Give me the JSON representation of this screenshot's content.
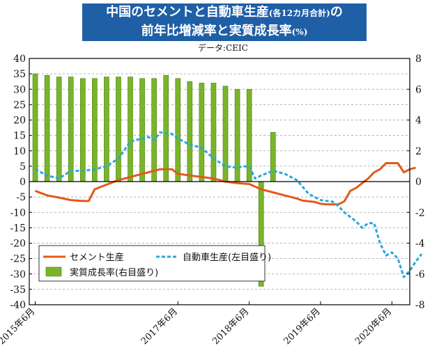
{
  "header": {
    "title_line1_main": "中国のセメントと自動車生産",
    "title_line1_small": "(各12カ月合計)",
    "title_line1_end": "の",
    "title_line2_main": "前年比増減率と実質成長率",
    "title_line2_small": "(%)",
    "source": "データ:CEIC"
  },
  "chart_data": {
    "type": "line",
    "title": "中国のセメントと自動車生産(各12カ月合計)の前年比増減率と実質成長率(%)",
    "x_axis": {
      "range": [
        "2015-05",
        "2020-09"
      ],
      "tick_labels": [
        "2015年6月",
        "2017年6月",
        "2018年6月",
        "2019年6月",
        "2020年6月"
      ],
      "tick_dates": [
        "2015-06",
        "2017-06",
        "2018-06",
        "2019-06",
        "2020-06"
      ]
    },
    "y_left": {
      "range": [
        -40,
        40
      ],
      "step": 5,
      "tick_labels": [
        "40",
        "35",
        "30",
        "25",
        "20",
        "15",
        "10",
        "5",
        "0",
        "-5",
        "-10",
        "-15",
        "-20",
        "-25",
        "-30",
        "-35",
        "-40"
      ]
    },
    "y_right": {
      "range": [
        -8,
        8
      ],
      "step": 2,
      "tick_labels": [
        "8",
        "6",
        "4",
        "2",
        "0",
        "-2",
        "-4",
        "-6",
        "-8"
      ]
    },
    "grid": "horizontal dashed",
    "legend": "bottom-left",
    "series": [
      {
        "name": "セメント生産",
        "axis": "left",
        "style": "solid",
        "color": "#e2591b",
        "points": [
          [
            "2015-06",
            -3
          ],
          [
            "2015-08",
            -4.5
          ],
          [
            "2015-10",
            -5.2
          ],
          [
            "2015-12",
            -6
          ],
          [
            "2016-02",
            -6.3
          ],
          [
            "2016-03",
            -6.3
          ],
          [
            "2016-04",
            -2.5
          ],
          [
            "2016-06",
            -1
          ],
          [
            "2016-08",
            0.5
          ],
          [
            "2016-10",
            1.5
          ],
          [
            "2016-12",
            2.5
          ],
          [
            "2017-02",
            3.5
          ],
          [
            "2017-03",
            4
          ],
          [
            "2017-05",
            4
          ],
          [
            "2017-06",
            2.5
          ],
          [
            "2017-08",
            2
          ],
          [
            "2017-10",
            1.5
          ],
          [
            "2017-12",
            1
          ],
          [
            "2018-02",
            0
          ],
          [
            "2018-04",
            -0.5
          ],
          [
            "2018-06",
            -0.8
          ],
          [
            "2018-08",
            -2.5
          ],
          [
            "2018-10",
            -3.5
          ],
          [
            "2018-12",
            -4.5
          ],
          [
            "2019-02",
            -5.5
          ],
          [
            "2019-03",
            -6.2
          ],
          [
            "2019-05",
            -6.6
          ],
          [
            "2019-06",
            -7.2
          ],
          [
            "2019-07",
            -7.4
          ],
          [
            "2019-08",
            -7.4
          ],
          [
            "2019-09",
            -7.4
          ],
          [
            "2019-10",
            -6.4
          ],
          [
            "2019-11",
            -3
          ],
          [
            "2019-12",
            -2
          ],
          [
            "2020-02",
            1
          ],
          [
            "2020-03",
            3
          ],
          [
            "2020-04",
            4
          ],
          [
            "2020-05",
            6
          ],
          [
            "2020-06",
            6
          ],
          [
            "2020-07",
            6
          ],
          [
            "2020-08",
            3
          ],
          [
            "2020-09",
            4
          ],
          [
            "2020-10",
            4.5
          ]
        ]
      },
      {
        "name": "自動車生産(左目盛り)",
        "axis": "left",
        "style": "dashed",
        "color": "#29a8dc",
        "points": [
          [
            "2015-06",
            4
          ],
          [
            "2015-08",
            2
          ],
          [
            "2015-10",
            1
          ],
          [
            "2015-12",
            3.5
          ],
          [
            "2016-02",
            3.5
          ],
          [
            "2016-04",
            4
          ],
          [
            "2016-06",
            5
          ],
          [
            "2016-08",
            7.5
          ],
          [
            "2016-10",
            13
          ],
          [
            "2016-12",
            14
          ],
          [
            "2017-01",
            14.5
          ],
          [
            "2017-02",
            13.5
          ],
          [
            "2017-03",
            16
          ],
          [
            "2017-05",
            15.5
          ],
          [
            "2017-06",
            14
          ],
          [
            "2017-08",
            12
          ],
          [
            "2017-10",
            11
          ],
          [
            "2017-12",
            7.5
          ],
          [
            "2018-02",
            5
          ],
          [
            "2018-04",
            4.5
          ],
          [
            "2018-05",
            5
          ],
          [
            "2018-06",
            4.8
          ],
          [
            "2018-07",
            1
          ],
          [
            "2018-08",
            2
          ],
          [
            "2018-10",
            3.5
          ],
          [
            "2018-12",
            2.5
          ],
          [
            "2019-02",
            0.5
          ],
          [
            "2019-04",
            -4
          ],
          [
            "2019-06",
            -6
          ],
          [
            "2019-08",
            -6.5
          ],
          [
            "2019-09",
            -8
          ],
          [
            "2019-10",
            -10
          ],
          [
            "2019-12",
            -13
          ],
          [
            "2020-01",
            -15
          ],
          [
            "2020-02",
            -13.5
          ],
          [
            "2020-03",
            -13.5
          ],
          [
            "2020-04",
            -20
          ],
          [
            "2020-05",
            -24
          ],
          [
            "2020-06",
            -23
          ],
          [
            "2020-07",
            -25
          ],
          [
            "2020-08",
            -31
          ],
          [
            "2020-09",
            -29
          ],
          [
            "2020-10",
            -26
          ],
          [
            "2020-11",
            -23.5
          ]
        ]
      },
      {
        "name": "実質成長率(右目盛り)",
        "axis": "right",
        "style": "bar",
        "color": "#7ab529",
        "points": [
          [
            "2015-06",
            7.0
          ],
          [
            "2015-08",
            6.9
          ],
          [
            "2015-10",
            6.8
          ],
          [
            "2015-12",
            6.8
          ],
          [
            "2016-02",
            6.7
          ],
          [
            "2016-04",
            6.7
          ],
          [
            "2016-06",
            6.8
          ],
          [
            "2016-08",
            6.8
          ],
          [
            "2016-10",
            6.8
          ],
          [
            "2016-12",
            6.7
          ],
          [
            "2017-02",
            6.7
          ],
          [
            "2017-04",
            6.9
          ],
          [
            "2017-06",
            6.7
          ],
          [
            "2017-08",
            6.5
          ],
          [
            "2017-10",
            6.4
          ],
          [
            "2017-12",
            6.4
          ],
          [
            "2018-02",
            6.2
          ],
          [
            "2018-04",
            6.0
          ],
          [
            "2018-06",
            6.0
          ],
          [
            "2018-08",
            -6.8
          ],
          [
            "2018-10",
            3.2
          ]
        ]
      }
    ]
  },
  "legend": {
    "items": [
      {
        "label": "セメント生産",
        "marker": "line"
      },
      {
        "label": "自動車生産(左目盛り)",
        "marker": "dashed"
      },
      {
        "label": "実質成長率(右目盛り)",
        "marker": "bar"
      }
    ]
  }
}
